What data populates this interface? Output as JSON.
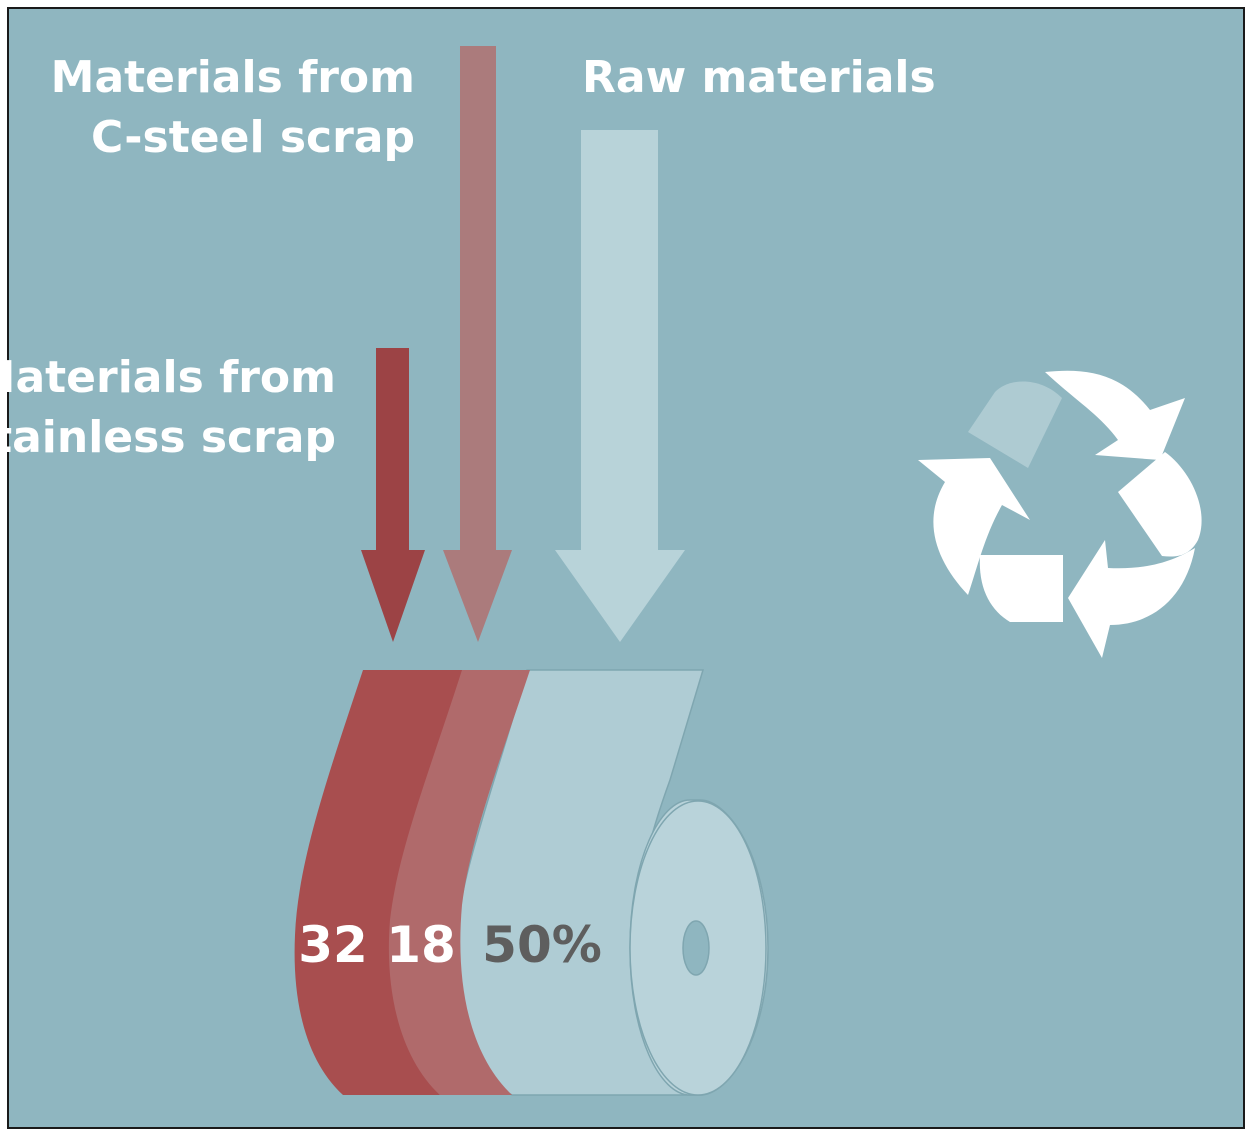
{
  "labels": {
    "c_steel_line1": "Materials from",
    "c_steel_line2": "C-steel scrap",
    "raw": "Raw materials",
    "stainless_line1": "Materials from",
    "stainless_line2": "stainless scrap"
  },
  "values": {
    "stainless": "32",
    "c_steel": "18",
    "raw": "50%"
  },
  "colors": {
    "background": "#8fb6c0",
    "border": "#1a1a1a",
    "stainless": "#a84e4f",
    "stainless_arrow": "#9c4345",
    "c_steel": "#b06a6b",
    "c_steel_arrow": "#ab7b7c",
    "raw": "#afccd4",
    "raw_arrow": "#b8d3d9",
    "roll_side": "#b9d3da",
    "text_light": "#ffffff",
    "text_dark": "#5e5e5e",
    "recycle": "#ffffff",
    "recycle_faded": "#aecbd2"
  },
  "icons": {
    "recycle": "recycle-icon"
  }
}
